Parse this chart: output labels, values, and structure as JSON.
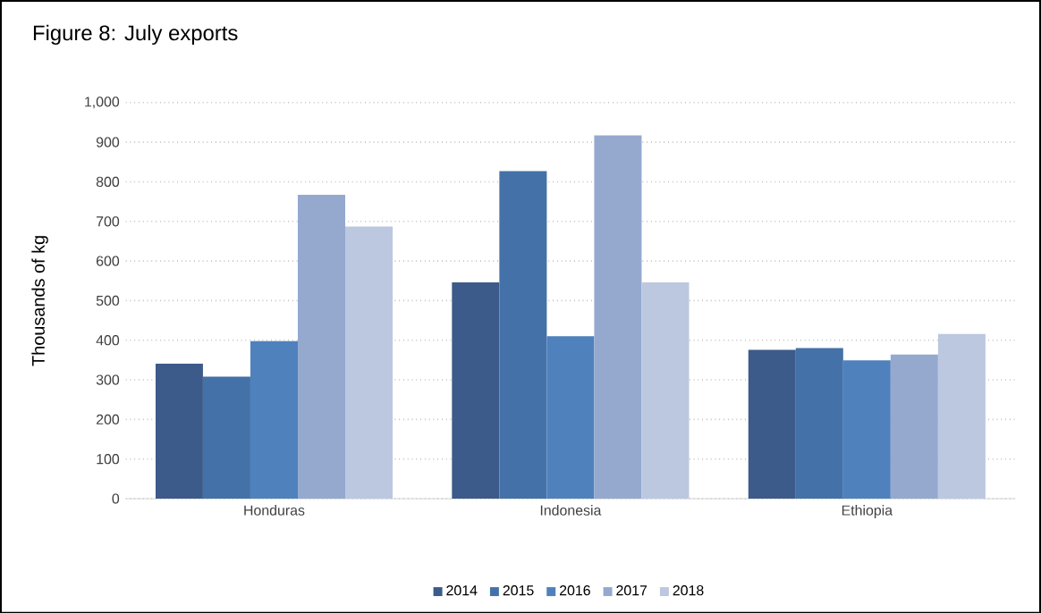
{
  "chart_data": {
    "type": "bar",
    "title": "Figure 8: July exports",
    "ylabel": "Thousands of kg",
    "categories": [
      "Honduras",
      "Indonesia",
      "Ethiopia"
    ],
    "series": [
      {
        "name": "2014",
        "color": "#3c5a8a",
        "values": [
          341,
          546,
          376
        ]
      },
      {
        "name": "2015",
        "color": "#4472a8",
        "values": [
          308,
          827,
          380
        ]
      },
      {
        "name": "2016",
        "color": "#4f81bd",
        "values": [
          398,
          410,
          349
        ]
      },
      {
        "name": "2017",
        "color": "#95a9cf",
        "values": [
          767,
          917,
          364
        ]
      },
      {
        "name": "2018",
        "color": "#bcc8e0",
        "values": [
          687,
          546,
          416
        ]
      }
    ],
    "ylim": [
      0,
      1000
    ],
    "yticks": [
      0,
      {
        "value": 100,
        "label": "100"
      },
      {
        "value": 200,
        "label": "200"
      },
      {
        "value": 300,
        "label": "300"
      },
      {
        "value": 400,
        "label": "400"
      },
      {
        "value": 500,
        "label": "500"
      },
      {
        "value": 600,
        "label": "600"
      },
      {
        "value": 700,
        "label": "700"
      },
      {
        "value": 800,
        "label": "800"
      },
      {
        "value": 900,
        "label": "900"
      },
      {
        "value": 1000,
        "label": "1,000"
      }
    ],
    "grid": "y",
    "legend": "bottom"
  }
}
